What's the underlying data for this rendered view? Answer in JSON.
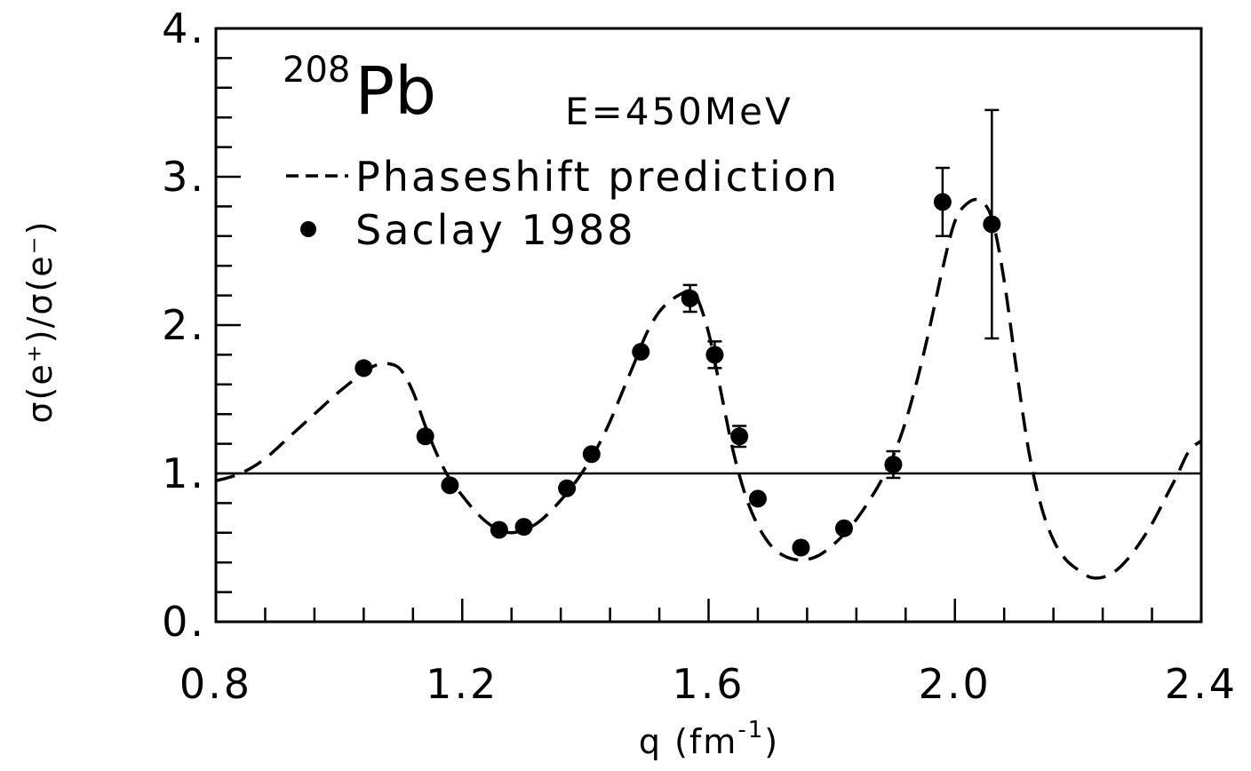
{
  "chart_data": {
    "type": "scatter",
    "nucleus_mass_number": "208",
    "nucleus_symbol": "Pb",
    "energy_label": "E=450MeV",
    "xlabel_base": "q (fm",
    "xlabel_exp": "-1",
    "xlabel_close": ")",
    "ylabel": "σ(e⁺)/σ(e⁻)",
    "xlim": [
      0.8,
      2.4
    ],
    "ylim": [
      0,
      4
    ],
    "x_tick_labels": [
      {
        "value": 0.8,
        "label": "0.8"
      },
      {
        "value": 1.2,
        "label": "1.2"
      },
      {
        "value": 1.6,
        "label": "1.6"
      },
      {
        "value": 2.0,
        "label": "2.0"
      },
      {
        "value": 2.4,
        "label": "2.4"
      }
    ],
    "y_tick_labels": [
      {
        "value": 0,
        "label": "0."
      },
      {
        "value": 1,
        "label": "1."
      },
      {
        "value": 2,
        "label": "2."
      },
      {
        "value": 3,
        "label": "3."
      },
      {
        "value": 4,
        "label": "4."
      }
    ],
    "x_minor_step": 0.08,
    "y_minor_step": 0.2,
    "reference_line_y": 1.0,
    "legend": [
      {
        "label": "Phaseshift prediction",
        "style": "dashed-line"
      },
      {
        "label": "Saclay 1988",
        "style": "filled-circle"
      }
    ],
    "series": [
      {
        "name": "Phaseshift prediction",
        "kind": "dashed-line",
        "points": [
          [
            0.8,
            0.95
          ],
          [
            0.84,
            1.0
          ],
          [
            0.88,
            1.1
          ],
          [
            0.92,
            1.25
          ],
          [
            0.96,
            1.4
          ],
          [
            1.0,
            1.55
          ],
          [
            1.04,
            1.68
          ],
          [
            1.06,
            1.73
          ],
          [
            1.08,
            1.74
          ],
          [
            1.1,
            1.7
          ],
          [
            1.12,
            1.55
          ],
          [
            1.14,
            1.32
          ],
          [
            1.16,
            1.12
          ],
          [
            1.18,
            0.96
          ],
          [
            1.2,
            0.85
          ],
          [
            1.22,
            0.75
          ],
          [
            1.24,
            0.67
          ],
          [
            1.26,
            0.62
          ],
          [
            1.28,
            0.6
          ],
          [
            1.3,
            0.62
          ],
          [
            1.32,
            0.66
          ],
          [
            1.34,
            0.73
          ],
          [
            1.36,
            0.82
          ],
          [
            1.38,
            0.92
          ],
          [
            1.4,
            1.04
          ],
          [
            1.42,
            1.18
          ],
          [
            1.44,
            1.35
          ],
          [
            1.46,
            1.55
          ],
          [
            1.48,
            1.75
          ],
          [
            1.5,
            1.95
          ],
          [
            1.52,
            2.09
          ],
          [
            1.54,
            2.17
          ],
          [
            1.56,
            2.22
          ],
          [
            1.57,
            2.23
          ],
          [
            1.58,
            2.2
          ],
          [
            1.6,
            1.95
          ],
          [
            1.62,
            1.55
          ],
          [
            1.64,
            1.15
          ],
          [
            1.66,
            0.85
          ],
          [
            1.68,
            0.65
          ],
          [
            1.7,
            0.52
          ],
          [
            1.72,
            0.45
          ],
          [
            1.74,
            0.42
          ],
          [
            1.76,
            0.42
          ],
          [
            1.78,
            0.45
          ],
          [
            1.8,
            0.51
          ],
          [
            1.82,
            0.59
          ],
          [
            1.84,
            0.69
          ],
          [
            1.86,
            0.81
          ],
          [
            1.88,
            0.95
          ],
          [
            1.9,
            1.12
          ],
          [
            1.92,
            1.35
          ],
          [
            1.94,
            1.65
          ],
          [
            1.96,
            2.0
          ],
          [
            1.98,
            2.38
          ],
          [
            2.0,
            2.7
          ],
          [
            2.02,
            2.82
          ],
          [
            2.04,
            2.84
          ],
          [
            2.06,
            2.72
          ],
          [
            2.08,
            2.3
          ],
          [
            2.1,
            1.7
          ],
          [
            2.12,
            1.15
          ],
          [
            2.14,
            0.78
          ],
          [
            2.16,
            0.55
          ],
          [
            2.18,
            0.42
          ],
          [
            2.2,
            0.35
          ],
          [
            2.22,
            0.3
          ],
          [
            2.24,
            0.3
          ],
          [
            2.26,
            0.34
          ],
          [
            2.28,
            0.42
          ],
          [
            2.3,
            0.53
          ],
          [
            2.32,
            0.66
          ],
          [
            2.34,
            0.82
          ],
          [
            2.36,
            0.98
          ],
          [
            2.38,
            1.15
          ],
          [
            2.4,
            1.22
          ]
        ]
      },
      {
        "name": "Saclay 1988",
        "kind": "points",
        "points": [
          {
            "x": 1.04,
            "y": 1.71
          },
          {
            "x": 1.14,
            "y": 1.25
          },
          {
            "x": 1.18,
            "y": 0.92
          },
          {
            "x": 1.26,
            "y": 0.62
          },
          {
            "x": 1.3,
            "y": 0.64
          },
          {
            "x": 1.37,
            "y": 0.9
          },
          {
            "x": 1.41,
            "y": 1.13
          },
          {
            "x": 1.49,
            "y": 1.82
          },
          {
            "x": 1.57,
            "y": 2.18,
            "yerr": 0.09
          },
          {
            "x": 1.61,
            "y": 1.8,
            "yerr": 0.09
          },
          {
            "x": 1.65,
            "y": 1.25,
            "yerr": 0.07
          },
          {
            "x": 1.68,
            "y": 0.83
          },
          {
            "x": 1.75,
            "y": 0.5
          },
          {
            "x": 1.82,
            "y": 0.63
          },
          {
            "x": 1.9,
            "y": 1.06,
            "yerr": 0.09
          },
          {
            "x": 1.98,
            "y": 2.83,
            "yerr": 0.23
          },
          {
            "x": 2.06,
            "y": 2.68,
            "yerr": 0.77
          }
        ]
      }
    ]
  }
}
